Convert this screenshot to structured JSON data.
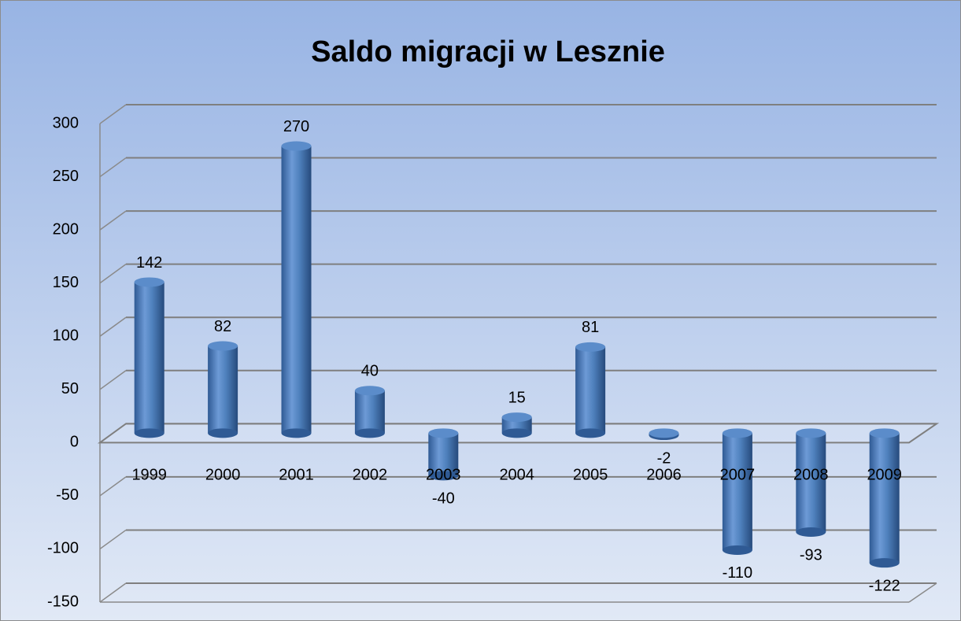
{
  "chart_data": {
    "type": "bar",
    "title": "Saldo migracji w Lesznie",
    "categories": [
      "1999",
      "2000",
      "2001",
      "2002",
      "2003",
      "2004",
      "2005",
      "2006",
      "2007",
      "2008",
      "2009"
    ],
    "values": [
      142,
      82,
      270,
      40,
      -40,
      15,
      81,
      -2,
      -110,
      -93,
      -122
    ],
    "color": "#4f81bd",
    "ylim": [
      -150,
      300
    ],
    "yticks": [
      -150,
      -100,
      -50,
      0,
      50,
      100,
      150,
      200,
      250,
      300
    ],
    "grid": true
  }
}
